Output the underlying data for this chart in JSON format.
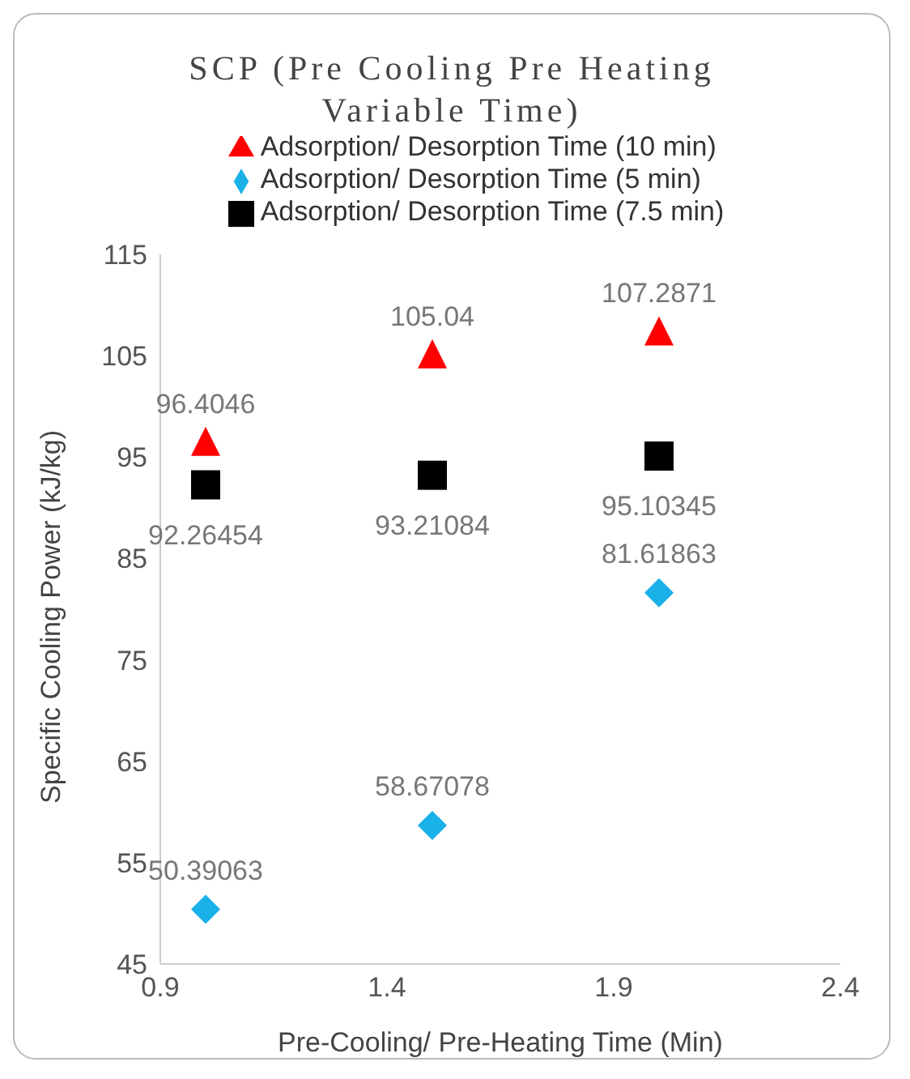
{
  "chart_data": {
    "type": "scatter",
    "title": "SCP (Pre Cooling Pre Heating Variable Time)",
    "xlabel": "Pre-Cooling/ Pre-Heating Time (Min)",
    "ylabel": "Specific Cooling Power (kJ/kg)",
    "x": [
      1,
      1.5,
      2
    ],
    "series": [
      {
        "name": "Adsorption/ Desorption Time (5 min)",
        "color": "#1ab0e8",
        "marker": "diamond",
        "values": [
          50.39063,
          58.67078,
          81.61863
        ]
      },
      {
        "name": "Adsorption/ Desorption Time (7.5 min)",
        "color": "#000000",
        "marker": "square",
        "values": [
          92.26454,
          93.21084,
          95.10345
        ]
      },
      {
        "name": "Adsorption/ Desorption Time (10 min)",
        "color": "#ff0000",
        "marker": "triangle",
        "values": [
          96.4046,
          105.04,
          107.2871
        ]
      }
    ],
    "xlim": [
      0.9,
      2.4
    ],
    "xticks": [
      0.9,
      1.4,
      1.9,
      2.4
    ],
    "ylim": [
      45,
      115
    ],
    "yticks": [
      45,
      55,
      65,
      75,
      85,
      95,
      105,
      115
    ],
    "grid": false,
    "legend": "top",
    "data_labels": true
  }
}
